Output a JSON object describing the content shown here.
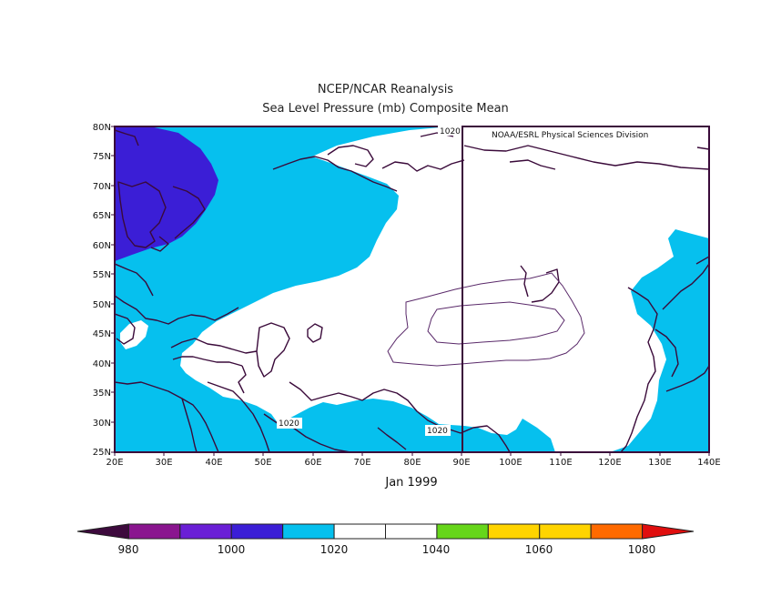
{
  "title": "NCEP/NCAR Reanalysis",
  "subtitle": "Sea Level Pressure (mb) Composite Mean",
  "credit": "NOAA/ESRL Physical Sciences Division",
  "period_label": "Jan 1999",
  "units": "mb",
  "lat_ticks": [
    "80N",
    "75N",
    "70N",
    "65N",
    "60N",
    "55N",
    "50N",
    "45N",
    "40N",
    "35N",
    "30N",
    "25N"
  ],
  "lon_ticks": [
    "20E",
    "30E",
    "40E",
    "50E",
    "60E",
    "70E",
    "80E",
    "90E",
    "100E",
    "110E",
    "120E",
    "130E",
    "140E"
  ],
  "contour_labels": [
    "1020",
    "1020",
    "1020"
  ],
  "colorbar": {
    "labels": [
      "980",
      "1000",
      "1020",
      "1040",
      "1060",
      "1080"
    ],
    "colors": [
      "#3d0a3d",
      "#8a158f",
      "#6a1fd6",
      "#3b1ed6",
      "#06c0ee",
      "#ffffff",
      "#ffffff",
      "#66d61a",
      "#ffd400",
      "#ffd400",
      "#ff6a00",
      "#e00e0e"
    ]
  },
  "colors": {
    "low_1000": "#3b1ed6",
    "mid_1020": "#06c0ee",
    "high_1040": "#ffffff",
    "coast": "#3a0a3a"
  }
}
